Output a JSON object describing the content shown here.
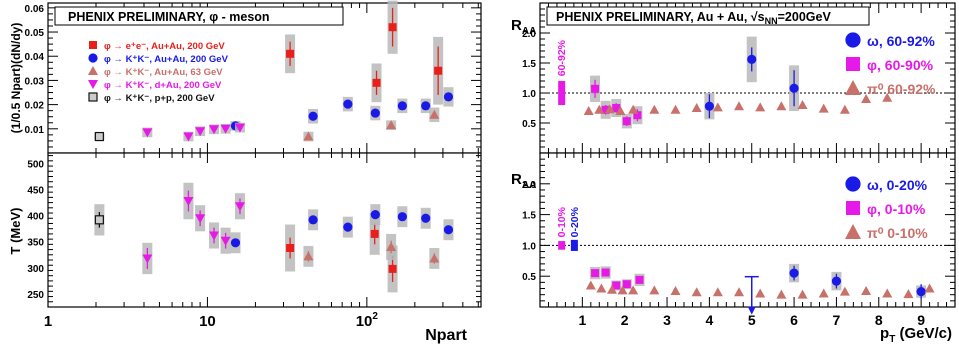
{
  "left": {
    "banner": "PHENIX PRELIMINARY,  φ - meson",
    "xlabel": "Npart",
    "xticks": [
      {
        "v": 1,
        "t": "1"
      },
      {
        "v": 10,
        "t": "10"
      },
      {
        "v": 100,
        "t": "10",
        "sup": "2"
      }
    ],
    "top": {
      "ylabel": "(1/0.5 Npart)(dN/dy)",
      "ylim": [
        0,
        0.062
      ],
      "yticks": [
        "0.01",
        "0.02",
        "0.03",
        "0.04",
        "0.05",
        "0.06"
      ],
      "ytick_values": [
        0.01,
        0.02,
        0.03,
        0.04,
        0.05,
        0.06
      ],
      "legend": [
        {
          "label": "φ → e⁺e⁻, Au+Au, 200 GeV",
          "color": "#e8201c",
          "marker": "square"
        },
        {
          "label": "φ → K⁺K⁻, Au+Au, 200 GeV",
          "color": "#1a1ae6",
          "marker": "circle"
        },
        {
          "label": "φ → K⁺K⁻, Au+Au, 63 GeV",
          "color": "#c8706a",
          "marker": "triangle-up"
        },
        {
          "label": "φ → K⁺K⁻, d+Au, 200 GeV",
          "color": "#e619e6",
          "marker": "triangle-down"
        },
        {
          "label": "φ → K⁺K⁻, p+p, 200 GeV",
          "color": "#111111",
          "marker": "open-square"
        }
      ]
    },
    "bottom": {
      "ylabel": "T (MeV)",
      "ylim": [
        225,
        520
      ],
      "yticks": [
        "250",
        "300",
        "350",
        "400",
        "450",
        "500"
      ],
      "ytick_values": [
        250,
        300,
        350,
        400,
        450,
        500
      ]
    }
  },
  "right": {
    "banner": "PHENIX PRELIMINARY, Au + Au, √s",
    "banner_sub": "NN",
    "banner_tail": "=200GeV",
    "xlabel": "p",
    "xlabel_sub": "T",
    "xlabel_tail": " (GeV/c)",
    "xlim": [
      0,
      9.8
    ],
    "xticks": [
      "1",
      "2",
      "3",
      "4",
      "5",
      "6",
      "7",
      "8",
      "9"
    ],
    "xtick_values": [
      1,
      2,
      3,
      4,
      5,
      6,
      7,
      8,
      9
    ],
    "ylabel": "R",
    "ylabel_sub": "AA",
    "ylim": [
      0,
      2.5
    ],
    "yticks": [
      "0.5",
      "1.0",
      "1.5",
      "2.0",
      "2.5"
    ],
    "ytick_values": [
      0.5,
      1.0,
      1.5,
      2.0,
      2.5
    ],
    "top": {
      "legend": [
        {
          "label": "ω, 60-92%",
          "color": "#1a1ae6",
          "marker": "circle"
        },
        {
          "label": "φ, 60-90%",
          "color": "#e619e6",
          "marker": "square"
        },
        {
          "label": "π⁰ 60-92%",
          "color": "#c8706a",
          "marker": "triangle-up"
        }
      ],
      "norm_labels": [
        {
          "text": "60-92%",
          "color": "#e619e6"
        }
      ]
    },
    "bottom": {
      "legend": [
        {
          "label": "ω, 0-20%",
          "color": "#1a1ae6",
          "marker": "circle"
        },
        {
          "label": "φ, 0-10%",
          "color": "#e619e6",
          "marker": "square"
        },
        {
          "label": "π⁰ 0-10%",
          "color": "#c8706a",
          "marker": "triangle-up"
        }
      ],
      "norm_labels": [
        {
          "text": "0-10%",
          "color": "#e619e6"
        },
        {
          "text": "0-20%",
          "color": "#1a1ae6"
        }
      ]
    }
  },
  "chart_data": [
    {
      "type": "scatter",
      "title": "PHENIX PRELIMINARY,  φ - meson",
      "xlabel": "Npart",
      "ylabel": "(1/0.5 Npart)(dN/dy)",
      "xscale": "log",
      "xlim": [
        1,
        520
      ],
      "ylim": [
        0,
        0.062
      ],
      "legend_position": "top-left",
      "series": [
        {
          "name": "φ → e⁺e⁻, Au+Au, 200 GeV",
          "color": "#e8201c",
          "marker": "square",
          "points": [
            {
              "x": 33,
              "y": 0.041,
              "err": 0.005,
              "sys": 0.008
            },
            {
              "x": 115,
              "y": 0.029,
              "err": 0.005,
              "sys": 0.008
            },
            {
              "x": 145,
              "y": 0.052,
              "err": 0.008,
              "sys": 0.011
            },
            {
              "x": 280,
              "y": 0.034,
              "err": 0.01,
              "sys": 0.014
            }
          ]
        },
        {
          "name": "φ → K⁺K⁻, Au+Au, 200 GeV",
          "color": "#1a1ae6",
          "marker": "circle",
          "points": [
            {
              "x": 15,
              "y": 0.0112,
              "err": 0.001,
              "sys": 0.002
            },
            {
              "x": 46,
              "y": 0.0152,
              "err": 0.001,
              "sys": 0.003
            },
            {
              "x": 76,
              "y": 0.0202,
              "err": 0.001,
              "sys": 0.003
            },
            {
              "x": 113,
              "y": 0.0165,
              "err": 0.001,
              "sys": 0.003
            },
            {
              "x": 167,
              "y": 0.0195,
              "err": 0.001,
              "sys": 0.003
            },
            {
              "x": 234,
              "y": 0.0195,
              "err": 0.001,
              "sys": 0.003
            },
            {
              "x": 325,
              "y": 0.0232,
              "err": 0.001,
              "sys": 0.004
            }
          ]
        },
        {
          "name": "φ → K⁺K⁻, Au+Au, 63 GeV",
          "color": "#c8706a",
          "marker": "triangle-up",
          "points": [
            {
              "x": 43,
              "y": 0.0068,
              "err": 0.001,
              "sys": 0.002
            },
            {
              "x": 142,
              "y": 0.0115,
              "err": 0.001,
              "sys": 0.002
            },
            {
              "x": 265,
              "y": 0.0158,
              "err": 0.001,
              "sys": 0.003
            }
          ]
        },
        {
          "name": "φ → K⁺K⁻, d+Au, 200 GeV",
          "color": "#e619e6",
          "marker": "triangle-down",
          "points": [
            {
              "x": 4.2,
              "y": 0.0085,
              "err": 0.0008,
              "sys": 0.002
            },
            {
              "x": 7.6,
              "y": 0.0068,
              "err": 0.0008,
              "sys": 0.002
            },
            {
              "x": 9,
              "y": 0.009,
              "err": 0.0008,
              "sys": 0.002
            },
            {
              "x": 11,
              "y": 0.0098,
              "err": 0.0008,
              "sys": 0.002
            },
            {
              "x": 13,
              "y": 0.01,
              "err": 0.0008,
              "sys": 0.002
            },
            {
              "x": 16,
              "y": 0.0105,
              "err": 0.0008,
              "sys": 0.002
            }
          ]
        },
        {
          "name": "φ → K⁺K⁻, p+p, 200 GeV",
          "color": "#111111",
          "marker": "open-square",
          "points": [
            {
              "x": 2.1,
              "y": 0.0068,
              "err": 0.0005,
              "sys": 0.0015
            }
          ]
        }
      ]
    },
    {
      "type": "scatter",
      "xlabel": "Npart",
      "ylabel": "T (MeV)",
      "xscale": "log",
      "xlim": [
        1,
        520
      ],
      "ylim": [
        225,
        520
      ],
      "series": [
        {
          "name": "φ → e⁺e⁻, Au+Au, 200 GeV",
          "color": "#e8201c",
          "marker": "square",
          "points": [
            {
              "x": 33,
              "y": 338,
              "err": 20,
              "sys": 45
            },
            {
              "x": 112,
              "y": 365,
              "err": 20,
              "sys": 40
            },
            {
              "x": 145,
              "y": 298,
              "err": 25,
              "sys": 45
            }
          ]
        },
        {
          "name": "φ → K⁺K⁻, Au+Au, 200 GeV",
          "color": "#1a1ae6",
          "marker": "circle",
          "points": [
            {
              "x": 15,
              "y": 348,
              "err": 8,
              "sys": 20
            },
            {
              "x": 46,
              "y": 392,
              "err": 8,
              "sys": 20
            },
            {
              "x": 76,
              "y": 378,
              "err": 8,
              "sys": 20
            },
            {
              "x": 113,
              "y": 402,
              "err": 8,
              "sys": 20
            },
            {
              "x": 167,
              "y": 398,
              "err": 8,
              "sys": 20
            },
            {
              "x": 234,
              "y": 395,
              "err": 8,
              "sys": 20
            },
            {
              "x": 325,
              "y": 373,
              "err": 8,
              "sys": 20
            }
          ]
        },
        {
          "name": "φ → K⁺K⁻, Au+Au, 63 GeV",
          "color": "#c8706a",
          "marker": "triangle-up",
          "points": [
            {
              "x": 43,
              "y": 322,
              "err": 10,
              "sys": 20
            },
            {
              "x": 142,
              "y": 340,
              "err": 12,
              "sys": 25
            },
            {
              "x": 265,
              "y": 318,
              "err": 10,
              "sys": 20
            }
          ]
        },
        {
          "name": "φ → K⁺K⁻, d+Au, 200 GeV",
          "color": "#e619e6",
          "marker": "triangle-down",
          "points": [
            {
              "x": 4.2,
              "y": 318,
              "err": 20,
              "sys": 30
            },
            {
              "x": 7.6,
              "y": 428,
              "err": 20,
              "sys": 35
            },
            {
              "x": 9,
              "y": 395,
              "err": 15,
              "sys": 25
            },
            {
              "x": 11,
              "y": 362,
              "err": 15,
              "sys": 25
            },
            {
              "x": 13,
              "y": 352,
              "err": 15,
              "sys": 25
            },
            {
              "x": 16,
              "y": 418,
              "err": 15,
              "sys": 25
            }
          ]
        },
        {
          "name": "φ → K⁺K⁻, p+p, 200 GeV",
          "color": "#111111",
          "marker": "open-square",
          "points": [
            {
              "x": 2.1,
              "y": 392,
              "err": 15,
              "sys": 30
            }
          ]
        }
      ]
    },
    {
      "type": "scatter",
      "title": "PHENIX PRELIMINARY, Au + Au, √sNN=200GeV",
      "xlabel": "pT (GeV/c)",
      "ylabel": "RAA",
      "xlim": [
        0,
        9.8
      ],
      "ylim": [
        0,
        2.5
      ],
      "reference_line": 1.0,
      "legend_position": "top-right",
      "series": [
        {
          "name": "ω, 60-92%",
          "color": "#1a1ae6",
          "marker": "circle",
          "points": [
            {
              "x": 4.0,
              "y": 0.78,
              "err": 0.2,
              "sys": 0.22
            },
            {
              "x": 5.0,
              "y": 1.56,
              "err": 0.2,
              "sys": 0.38
            },
            {
              "x": 6.0,
              "y": 1.08,
              "err": 0.3,
              "sys": 0.38
            }
          ]
        },
        {
          "name": "φ, 60-90%",
          "color": "#e619e6",
          "marker": "square",
          "points": [
            {
              "x": 1.3,
              "y": 1.07,
              "err": 0.15,
              "sys": 0.22
            },
            {
              "x": 1.55,
              "y": 0.72,
              "err": 0.08,
              "sys": 0.15
            },
            {
              "x": 1.8,
              "y": 0.75,
              "err": 0.08,
              "sys": 0.15
            },
            {
              "x": 2.05,
              "y": 0.53,
              "err": 0.08,
              "sys": 0.12
            },
            {
              "x": 2.3,
              "y": 0.63,
              "err": 0.1,
              "sys": 0.15
            }
          ]
        },
        {
          "name": "π⁰ 60-92%",
          "color": "#c8706a",
          "marker": "triangle-up",
          "points": [
            {
              "x": 1.15,
              "y": 0.7
            },
            {
              "x": 1.4,
              "y": 0.72
            },
            {
              "x": 1.65,
              "y": 0.73
            },
            {
              "x": 1.9,
              "y": 0.7
            },
            {
              "x": 2.2,
              "y": 0.72
            },
            {
              "x": 2.7,
              "y": 0.72
            },
            {
              "x": 3.2,
              "y": 0.72
            },
            {
              "x": 3.7,
              "y": 0.75
            },
            {
              "x": 4.2,
              "y": 0.76
            },
            {
              "x": 4.7,
              "y": 0.78
            },
            {
              "x": 5.2,
              "y": 0.76
            },
            {
              "x": 5.7,
              "y": 0.78
            },
            {
              "x": 6.2,
              "y": 0.8
            },
            {
              "x": 6.7,
              "y": 0.74
            },
            {
              "x": 7.2,
              "y": 0.72
            },
            {
              "x": 7.7,
              "y": 0.9
            },
            {
              "x": 8.2,
              "y": 0.92
            }
          ]
        }
      ]
    },
    {
      "type": "scatter",
      "xlabel": "pT (GeV/c)",
      "ylabel": "RAA",
      "xlim": [
        0,
        9.8
      ],
      "ylim": [
        0,
        2.5
      ],
      "reference_line": 1.0,
      "legend_position": "top-right",
      "series": [
        {
          "name": "ω, 0-20%",
          "color": "#1a1ae6",
          "marker": "circle",
          "points": [
            {
              "x": 5.0,
              "y": 0.2,
              "upper_limit": true
            },
            {
              "x": 6.0,
              "y": 0.55,
              "err": 0.12,
              "sys": 0.15
            },
            {
              "x": 7.0,
              "y": 0.42,
              "err": 0.12,
              "sys": 0.15
            },
            {
              "x": 9.0,
              "y": 0.25,
              "err": 0.12,
              "sys": 0.1
            }
          ]
        },
        {
          "name": "φ, 0-10%",
          "color": "#e619e6",
          "marker": "square",
          "points": [
            {
              "x": 1.3,
              "y": 0.55,
              "err": 0.05,
              "sys": 0.1
            },
            {
              "x": 1.55,
              "y": 0.56,
              "err": 0.05,
              "sys": 0.1
            },
            {
              "x": 1.8,
              "y": 0.35,
              "err": 0.04,
              "sys": 0.08
            },
            {
              "x": 2.05,
              "y": 0.37,
              "err": 0.04,
              "sys": 0.08
            },
            {
              "x": 2.35,
              "y": 0.44,
              "err": 0.05,
              "sys": 0.1
            }
          ]
        },
        {
          "name": "π⁰ 0-10%",
          "color": "#c8706a",
          "marker": "triangle-up",
          "points": [
            {
              "x": 1.2,
              "y": 0.35
            },
            {
              "x": 1.45,
              "y": 0.3
            },
            {
              "x": 1.7,
              "y": 0.28
            },
            {
              "x": 1.95,
              "y": 0.27
            },
            {
              "x": 2.2,
              "y": 0.27
            },
            {
              "x": 2.7,
              "y": 0.27
            },
            {
              "x": 3.2,
              "y": 0.26
            },
            {
              "x": 3.7,
              "y": 0.24
            },
            {
              "x": 4.2,
              "y": 0.24
            },
            {
              "x": 4.7,
              "y": 0.24
            },
            {
              "x": 5.2,
              "y": 0.22
            },
            {
              "x": 5.7,
              "y": 0.2
            },
            {
              "x": 6.2,
              "y": 0.2
            },
            {
              "x": 6.7,
              "y": 0.22
            },
            {
              "x": 7.2,
              "y": 0.25
            },
            {
              "x": 7.7,
              "y": 0.26
            },
            {
              "x": 8.2,
              "y": 0.22
            },
            {
              "x": 8.7,
              "y": 0.21
            },
            {
              "x": 9.2,
              "y": 0.3
            }
          ]
        }
      ]
    }
  ]
}
